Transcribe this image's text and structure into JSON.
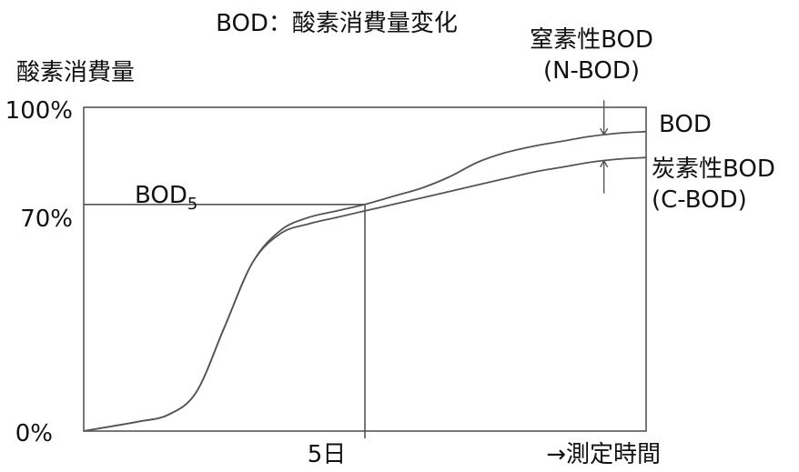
{
  "chart_data": {
    "type": "line",
    "title": "BOD：酸素消費量変化",
    "ylabel": "酸素消費量",
    "xlabel": "→測定時間",
    "ylim": [
      0,
      100
    ],
    "y_ticks": [
      "100%",
      "70%",
      "0%"
    ],
    "y_tick_values": [
      100,
      70,
      0
    ],
    "x_ticks": [
      "5日"
    ],
    "x_tick_values": [
      5
    ],
    "xlim": [
      0,
      10
    ],
    "reference": {
      "label_main": "BOD",
      "label_sub": "5",
      "x": 5,
      "y": 70
    },
    "series": [
      {
        "name": "BOD",
        "x": [
          0,
          0.5,
          1,
          1.5,
          2,
          2.5,
          3,
          3.5,
          4,
          4.5,
          5,
          5.5,
          6,
          6.5,
          7,
          7.5,
          8,
          8.5,
          9,
          9.5,
          10
        ],
        "y": [
          0,
          1.5,
          3,
          5,
          12,
          32,
          52,
          62,
          66,
          68,
          70,
          72.5,
          75,
          78.5,
          83,
          86,
          88,
          89.5,
          91,
          92,
          92.5
        ]
      },
      {
        "name": "炭素性BOD",
        "name_extra": "(C-BOD)",
        "x": [
          0,
          0.5,
          1,
          1.5,
          2,
          2.5,
          3,
          3.5,
          4,
          4.5,
          5,
          5.5,
          6,
          6.5,
          7,
          7.5,
          8,
          8.5,
          9,
          9.5,
          10
        ],
        "y": [
          0,
          1.5,
          3,
          5,
          12,
          32,
          52,
          61,
          64,
          66,
          68,
          70,
          72,
          74,
          76,
          78,
          80,
          81.5,
          83,
          84,
          84.5
        ]
      }
    ],
    "gap_annotation": {
      "label": "窒素性BOD",
      "label_extra": "(N-BOD)",
      "x": 9.25,
      "upper": 91.5,
      "lower": 83.5
    },
    "grid": false,
    "legend": "right-side inline labels"
  }
}
